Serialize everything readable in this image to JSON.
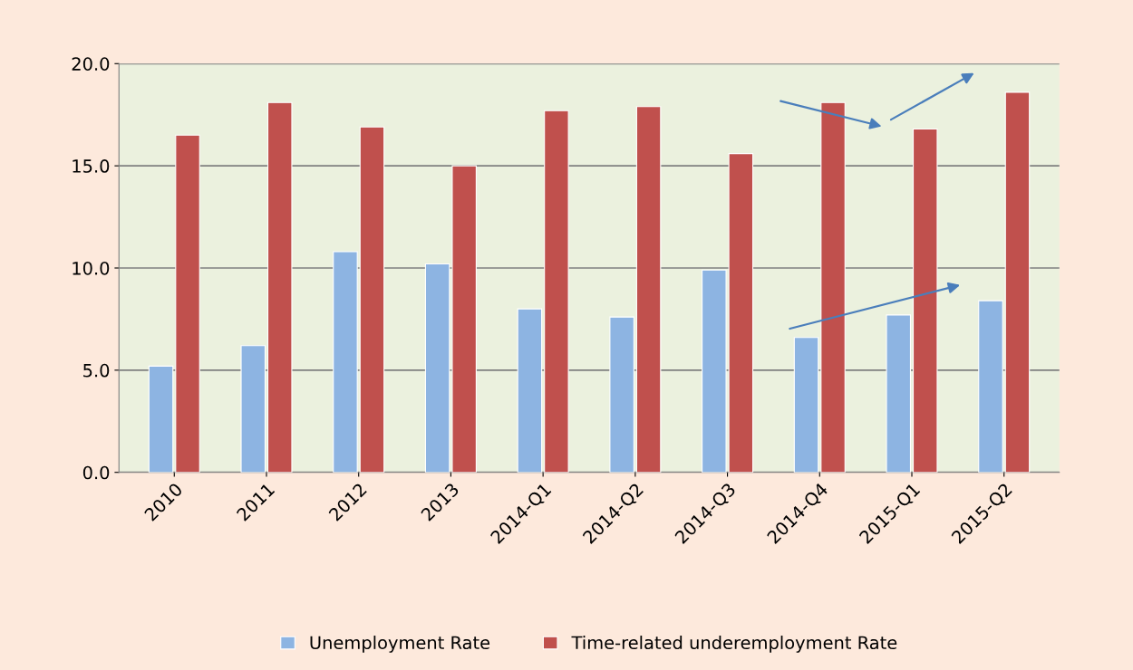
{
  "chart_data": {
    "type": "bar",
    "categories": [
      "2010",
      "2011",
      "2012",
      "2013",
      "2014-Q1",
      "2014-Q2",
      "2014-Q3",
      "2014-Q4",
      "2015-Q1",
      "2015-Q2"
    ],
    "series": [
      {
        "name": "Unemployment Rate",
        "color": "#8db4e2",
        "values": [
          5.2,
          6.2,
          10.8,
          10.2,
          8.0,
          7.6,
          9.9,
          6.6,
          7.7,
          8.4
        ]
      },
      {
        "name": "Time-related underemployment Rate",
        "color": "#c0504d",
        "values": [
          16.5,
          18.1,
          16.9,
          15.0,
          17.7,
          17.9,
          15.6,
          18.1,
          16.8,
          18.6
        ]
      }
    ],
    "ylim": [
      0,
      20
    ],
    "yticks": [
      {
        "value": 0,
        "label": "0.0"
      },
      {
        "value": 5,
        "label": "5.0"
      },
      {
        "value": 10,
        "label": "10.0"
      },
      {
        "value": 15,
        "label": "15.0"
      },
      {
        "value": 20,
        "label": "20.0"
      }
    ],
    "grid": "y",
    "legend": "bottom"
  }
}
